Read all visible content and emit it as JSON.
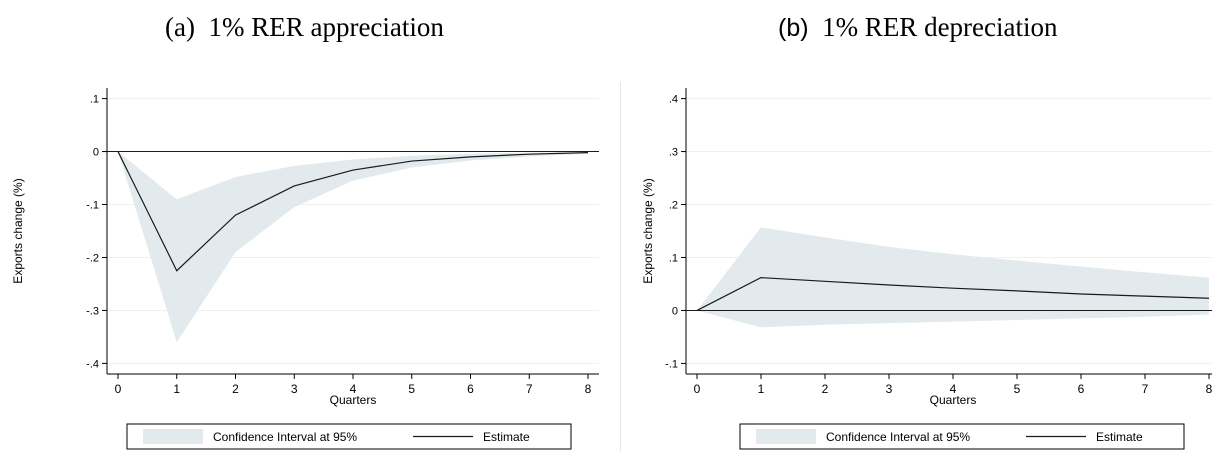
{
  "panels": {
    "a": {
      "title_prefix": "(a)",
      "title_text": "1% RER appreciation"
    },
    "b": {
      "title_prefix": "(b)",
      "title_text": "1% RER depreciation"
    }
  },
  "colors": {
    "band": "#e3eaee",
    "line": "#1a1a1a",
    "zero_line": "#1a1a1a",
    "grid": "#f0f0f0"
  },
  "chart_data": [
    {
      "type": "area",
      "title": "(a) 1% RER appreciation",
      "xlabel": "Quarters",
      "ylabel": "Exports change (%)",
      "xlim": [
        0,
        8
      ],
      "ylim": [
        -0.42,
        0.12
      ],
      "x_ticks": [
        0,
        1,
        2,
        3,
        4,
        5,
        6,
        7,
        8
      ],
      "x_tick_labels": [
        "0",
        "1",
        "2",
        "3",
        "4",
        "5",
        "6",
        "7",
        "8"
      ],
      "y_ticks": [
        0.1,
        0,
        -0.1,
        -0.2,
        -0.3,
        -0.4
      ],
      "y_tick_labels": [
        ".1",
        "0",
        "-.1",
        "-.2",
        "-.3",
        "-.4"
      ],
      "grid": true,
      "zero_line": true,
      "x": [
        0,
        1,
        2,
        3,
        4,
        5,
        6,
        7,
        8
      ],
      "series": [
        {
          "name": "Estimate",
          "role": "line",
          "values": [
            0,
            -0.225,
            -0.12,
            -0.065,
            -0.035,
            -0.018,
            -0.01,
            -0.005,
            -0.002
          ]
        },
        {
          "name": "Confidence Interval at 95%",
          "role": "band",
          "lower": [
            0,
            -0.36,
            -0.19,
            -0.105,
            -0.055,
            -0.03,
            -0.017,
            -0.009,
            -0.004
          ],
          "upper": [
            0,
            -0.09,
            -0.048,
            -0.027,
            -0.015,
            -0.008,
            -0.004,
            -0.002,
            -0.001
          ]
        }
      ],
      "legend": {
        "position": "bottom",
        "items": [
          "Confidence Interval at 95%",
          "Estimate"
        ]
      }
    },
    {
      "type": "area",
      "title": "(b) 1% RER depreciation",
      "xlabel": "Quarters",
      "ylabel": "Exports change (%)",
      "xlim": [
        0,
        8
      ],
      "ylim": [
        -0.12,
        0.42
      ],
      "x_ticks": [
        0,
        1,
        2,
        3,
        4,
        5,
        6,
        7,
        8
      ],
      "x_tick_labels": [
        "0",
        "1",
        "2",
        "3",
        "4",
        "5",
        "6",
        "7",
        "8"
      ],
      "y_ticks": [
        0.4,
        0.3,
        0.2,
        0.1,
        0,
        -0.1
      ],
      "y_tick_labels": [
        ".4",
        ".3",
        ".2",
        ".1",
        "0",
        "-.1"
      ],
      "grid": true,
      "zero_line": true,
      "x": [
        0,
        1,
        2,
        3,
        4,
        5,
        6,
        7,
        8
      ],
      "series": [
        {
          "name": "Estimate",
          "role": "line",
          "values": [
            0,
            0.062,
            0.055,
            0.048,
            0.042,
            0.037,
            0.031,
            0.027,
            0.023
          ]
        },
        {
          "name": "Confidence Interval at 95%",
          "role": "band",
          "lower": [
            0,
            -0.032,
            -0.027,
            -0.024,
            -0.021,
            -0.018,
            -0.015,
            -0.012,
            -0.008
          ],
          "upper": [
            0,
            0.157,
            0.138,
            0.12,
            0.106,
            0.094,
            0.083,
            0.072,
            0.062
          ]
        }
      ],
      "legend": {
        "position": "bottom",
        "items": [
          "Confidence Interval at 95%",
          "Estimate"
        ]
      }
    }
  ]
}
